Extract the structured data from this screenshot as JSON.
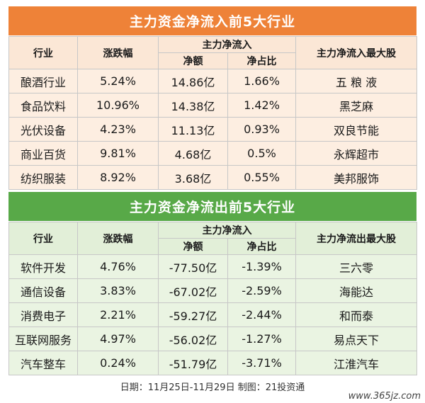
{
  "inflow": {
    "title": "主力资金净流入前5大行业",
    "headers": {
      "industry": "行业",
      "change": "涨跌幅",
      "net_inflow": "主力净流入",
      "net_amount": "净额",
      "net_ratio": "净占比",
      "top_stock": "主力净流入最大股"
    },
    "rows": [
      {
        "industry": "酿酒行业",
        "change": "5.24%",
        "amount": "14.86亿",
        "ratio": "1.66%",
        "stock": "五 粮 液"
      },
      {
        "industry": "食品饮料",
        "change": "10.96%",
        "amount": "14.38亿",
        "ratio": "1.42%",
        "stock": "黑芝麻"
      },
      {
        "industry": "光伏设备",
        "change": "4.23%",
        "amount": "11.13亿",
        "ratio": "0.93%",
        "stock": "双良节能"
      },
      {
        "industry": "商业百货",
        "change": "9.81%",
        "amount": "4.68亿",
        "ratio": "0.5%",
        "stock": "永辉超市"
      },
      {
        "industry": "纺织服装",
        "change": "8.92%",
        "amount": "3.68亿",
        "ratio": "0.55%",
        "stock": "美邦服饰"
      }
    ]
  },
  "outflow": {
    "title": "主力资金净流出前5大行业",
    "headers": {
      "industry": "行业",
      "change": "涨跌幅",
      "net_inflow": "主力净流入",
      "net_amount": "净额",
      "net_ratio": "净占比",
      "top_stock": "主力净流出最大股"
    },
    "rows": [
      {
        "industry": "软件开发",
        "change": "4.76%",
        "amount": "-77.50亿",
        "ratio": "-1.39%",
        "stock": "三六零"
      },
      {
        "industry": "通信设备",
        "change": "3.83%",
        "amount": "-67.02亿",
        "ratio": "-2.59%",
        "stock": "海能达"
      },
      {
        "industry": "消费电子",
        "change": "2.21%",
        "amount": "-59.27亿",
        "ratio": "-2.44%",
        "stock": "和而泰"
      },
      {
        "industry": "互联网服务",
        "change": "4.97%",
        "amount": "-56.02亿",
        "ratio": "-1.27%",
        "stock": "易点天下"
      },
      {
        "industry": "汽车整车",
        "change": "0.24%",
        "amount": "-51.79亿",
        "ratio": "-3.71%",
        "stock": "江淮汽车"
      }
    ]
  },
  "footer": "日期：11月25日-11月29日 制图：21投资通",
  "site": "www.365jz.com",
  "colors": {
    "inflow_banner": "#ee8238",
    "outflow_banner": "#58a948"
  }
}
